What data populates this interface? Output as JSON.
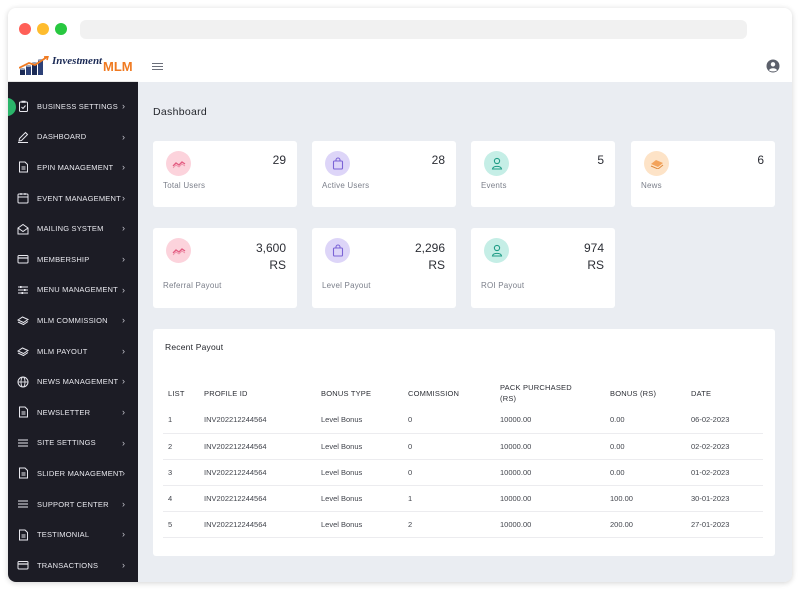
{
  "brand": {
    "name": "Investment",
    "suffix": "MLM"
  },
  "sidebar": {
    "items": [
      {
        "label": "BUSINESS SETTINGS",
        "icon": "clipboard-icon"
      },
      {
        "label": "DASHBOARD",
        "icon": "pencil-icon"
      },
      {
        "label": "EPIN MANAGEMENT",
        "icon": "document-icon"
      },
      {
        "label": "EVENT MANAGEMENT",
        "icon": "calendar-icon"
      },
      {
        "label": "MAILING SYSTEM",
        "icon": "mail-open-icon"
      },
      {
        "label": "MEMBERSHIP",
        "icon": "card-icon"
      },
      {
        "label": "MENU MANAGEMENT",
        "icon": "sliders-icon"
      },
      {
        "label": "MLM COMMISSION",
        "icon": "money-icon"
      },
      {
        "label": "MLM PAYOUT",
        "icon": "money-icon"
      },
      {
        "label": "NEWS MANAGEMENT",
        "icon": "globe-icon"
      },
      {
        "label": "NEWSLETTER",
        "icon": "document-icon"
      },
      {
        "label": "SITE SETTINGS",
        "icon": "list-icon"
      },
      {
        "label": "SLIDER MANAGEMENT",
        "icon": "document-icon"
      },
      {
        "label": "SUPPORT CENTER",
        "icon": "list-icon"
      },
      {
        "label": "TESTIMONIAL",
        "icon": "document-icon"
      },
      {
        "label": "TRANSACTIONS",
        "icon": "card-icon"
      }
    ]
  },
  "main": {
    "title": "Dashboard",
    "stats": [
      {
        "value": "29",
        "label": "Total Users",
        "color": "#fcd3dc",
        "icon": "trend-icon"
      },
      {
        "value": "28",
        "label": "Active Users",
        "color": "#ddd5f8",
        "icon": "bag-icon"
      },
      {
        "value": "5",
        "label": "Events",
        "color": "#c5eee6",
        "icon": "person-icon"
      },
      {
        "value": "6",
        "label": "News",
        "color": "#fde3c7",
        "icon": "money-icon"
      }
    ],
    "payouts": [
      {
        "value": "3,600",
        "unit": "RS",
        "label": "Referral Payout",
        "color": "#fcd3dc",
        "icon": "trend-icon"
      },
      {
        "value": "2,296",
        "unit": "RS",
        "label": "Level Payout",
        "color": "#ddd5f8",
        "icon": "bag-icon"
      },
      {
        "value": "974",
        "unit": "RS",
        "label": "ROI Payout",
        "color": "#c5eee6",
        "icon": "person-icon"
      }
    ],
    "recent": {
      "title": "Recent Payout",
      "headers": [
        "LIST",
        "PROFILE ID",
        "BONUS TYPE",
        "COMMISSION",
        "PACK PURCHASED (RS)",
        "BONUS (RS)",
        "DATE"
      ],
      "rows": [
        [
          "1",
          "INV202212244564",
          "Level Bonus",
          "0",
          "10000.00",
          "0.00",
          "06-02-2023"
        ],
        [
          "2",
          "INV202212244564",
          "Level Bonus",
          "0",
          "10000.00",
          "0.00",
          "02-02-2023"
        ],
        [
          "3",
          "INV202212244564",
          "Level Bonus",
          "0",
          "10000.00",
          "0.00",
          "01-02-2023"
        ],
        [
          "4",
          "INV202212244564",
          "Level Bonus",
          "1",
          "10000.00",
          "100.00",
          "30-01-2023"
        ],
        [
          "5",
          "INV202212244564",
          "Level Bonus",
          "2",
          "10000.00",
          "200.00",
          "27-01-2023"
        ]
      ]
    }
  }
}
